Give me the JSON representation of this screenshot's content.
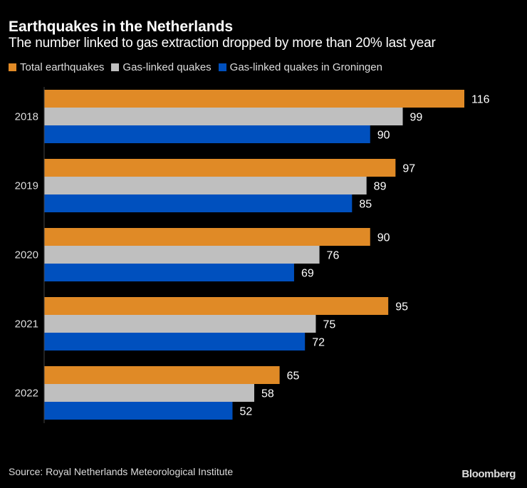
{
  "chart_data": {
    "type": "bar",
    "orientation": "horizontal",
    "title": "Earthquakes in the Netherlands",
    "subtitle": "The number linked to gas extraction dropped by more than 20% last year",
    "categories": [
      "2018",
      "2019",
      "2020",
      "2021",
      "2022"
    ],
    "series": [
      {
        "name": "Total earthquakes",
        "color": "#E08A26",
        "values": [
          116,
          97,
          90,
          95,
          65
        ]
      },
      {
        "name": "Gas-linked quakes",
        "color": "#BFBFBF",
        "values": [
          99,
          89,
          76,
          75,
          58
        ]
      },
      {
        "name": "Gas-linked quakes in Groningen",
        "color": "#0050BE",
        "values": [
          90,
          85,
          69,
          72,
          52
        ]
      }
    ],
    "xlabel": "",
    "ylabel": "",
    "xlim": [
      0,
      116
    ],
    "grid": false,
    "legend": "top-left",
    "data_labels": true
  },
  "source": "Source: Royal Netherlands Meteorological Institute",
  "brand": "Bloomberg"
}
